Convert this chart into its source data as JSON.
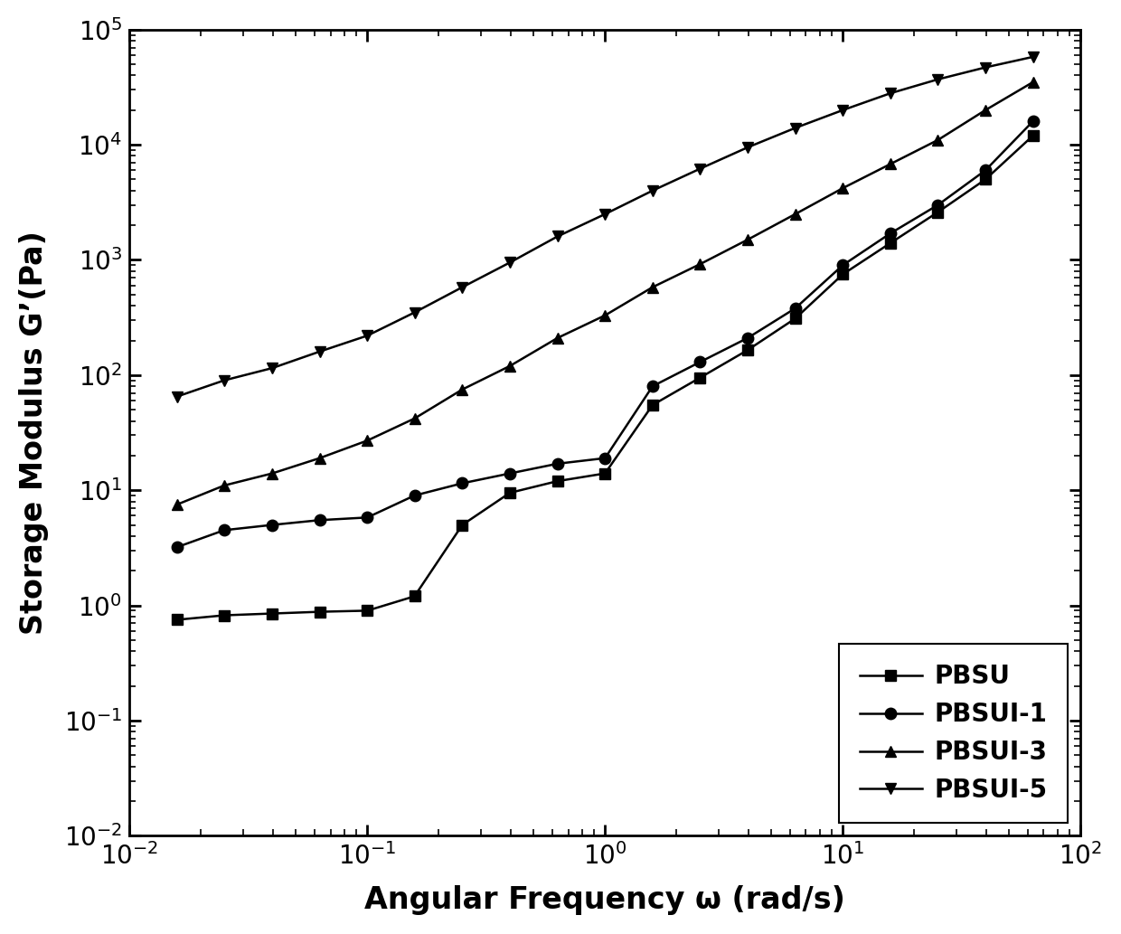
{
  "title": "",
  "xlabel": "Angular Frequency ω (rad/s)",
  "ylabel": "Storage Modulus G’(Pa)",
  "xlim": [
    0.01,
    100
  ],
  "ylim": [
    0.01,
    100000
  ],
  "series": [
    {
      "label": "PBSU",
      "marker": "s",
      "color": "#000000",
      "x": [
        0.0158,
        0.025,
        0.0398,
        0.063,
        0.1,
        0.158,
        0.251,
        0.398,
        0.631,
        1.0,
        1.585,
        2.512,
        3.981,
        6.31,
        10.0,
        15.85,
        25.12,
        39.81,
        63.1
      ],
      "y": [
        0.75,
        0.82,
        0.85,
        0.88,
        0.9,
        1.2,
        5.0,
        9.5,
        12.0,
        14.0,
        55.0,
        95.0,
        165.0,
        310.0,
        750.0,
        1400.0,
        2600.0,
        5000.0,
        12000.0
      ]
    },
    {
      "label": "PBSUI-1",
      "marker": "o",
      "color": "#000000",
      "x": [
        0.0158,
        0.025,
        0.0398,
        0.063,
        0.1,
        0.158,
        0.251,
        0.398,
        0.631,
        1.0,
        1.585,
        2.512,
        3.981,
        6.31,
        10.0,
        15.85,
        25.12,
        39.81,
        63.1
      ],
      "y": [
        3.2,
        4.5,
        5.0,
        5.5,
        5.8,
        9.0,
        11.5,
        14.0,
        17.0,
        19.0,
        80.0,
        130.0,
        210.0,
        380.0,
        900.0,
        1700.0,
        3000.0,
        6000.0,
        16000.0
      ]
    },
    {
      "label": "PBSUI-3",
      "marker": "^",
      "color": "#000000",
      "x": [
        0.0158,
        0.025,
        0.0398,
        0.063,
        0.1,
        0.158,
        0.251,
        0.398,
        0.631,
        1.0,
        1.585,
        2.512,
        3.981,
        6.31,
        10.0,
        15.85,
        25.12,
        39.81,
        63.1
      ],
      "y": [
        7.5,
        11.0,
        14.0,
        19.0,
        27.0,
        42.0,
        75.0,
        120.0,
        210.0,
        330.0,
        580.0,
        920.0,
        1500.0,
        2500.0,
        4200.0,
        6800.0,
        11000.0,
        20000.0,
        35000.0
      ]
    },
    {
      "label": "PBSUI-5",
      "marker": "v",
      "color": "#000000",
      "x": [
        0.0158,
        0.025,
        0.0398,
        0.063,
        0.1,
        0.158,
        0.251,
        0.398,
        0.631,
        1.0,
        1.585,
        2.512,
        3.981,
        6.31,
        10.0,
        15.85,
        25.12,
        39.81,
        63.1
      ],
      "y": [
        65.0,
        90.0,
        115.0,
        160.0,
        220.0,
        350.0,
        580.0,
        950.0,
        1600.0,
        2500.0,
        4000.0,
        6200.0,
        9500.0,
        14000.0,
        20000.0,
        28000.0,
        37000.0,
        47000.0,
        58000.0
      ]
    }
  ],
  "legend_loc": "lower right",
  "background_color": "#ffffff",
  "line_width": 1.8,
  "marker_size": 9
}
